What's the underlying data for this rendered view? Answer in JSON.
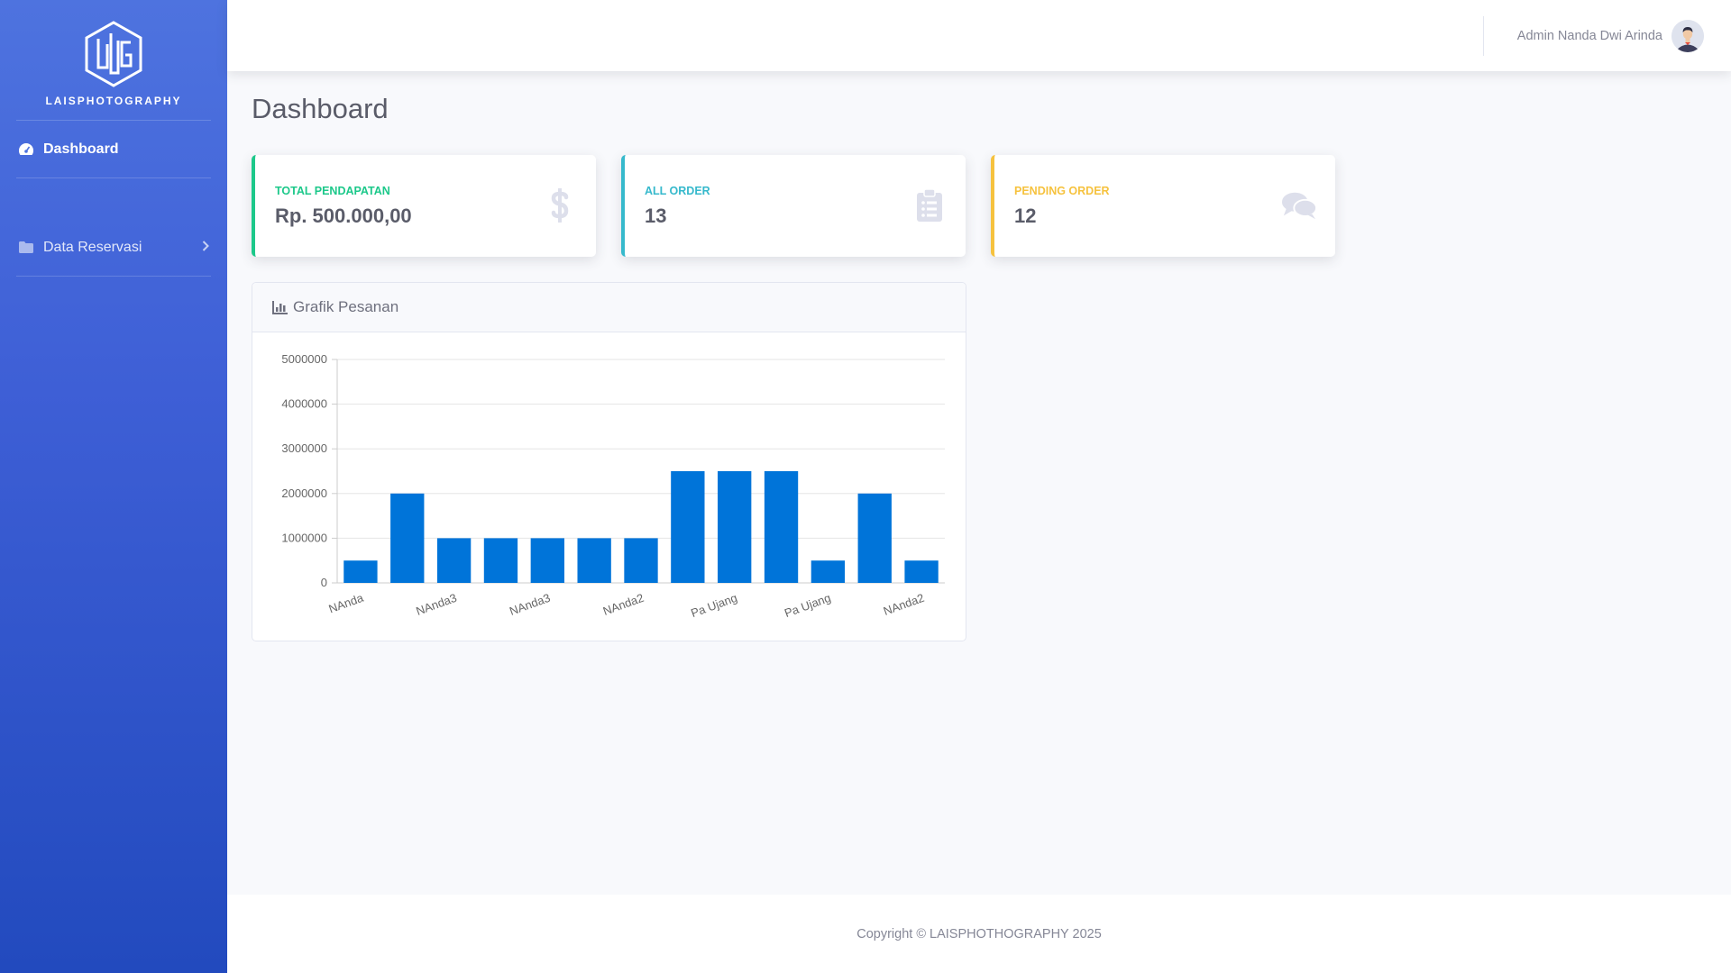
{
  "brand": {
    "name": "LAISPHOTOGRAPHY"
  },
  "sidebar": {
    "items": [
      {
        "label": "Dashboard",
        "icon": "tachometer-icon",
        "active": true
      },
      {
        "label": "Data Reservasi",
        "icon": "folder-icon",
        "active": false
      }
    ]
  },
  "topbar": {
    "user_name": "Admin Nanda Dwi Arinda"
  },
  "page": {
    "title": "Dashboard"
  },
  "cards": [
    {
      "label": "TOTAL PENDAPATAN",
      "value": "Rp. 500.000,00",
      "icon": "dollar-icon",
      "color": "#1cc88a"
    },
    {
      "label": "ALL ORDER",
      "value": "13",
      "icon": "clipboard-list-icon",
      "color": "#36b9cc"
    },
    {
      "label": "PENDING ORDER",
      "value": "12",
      "icon": "comments-icon",
      "color": "#f6c23e"
    }
  ],
  "chart_card": {
    "title": "Grafik Pesanan"
  },
  "chart_data": {
    "type": "bar",
    "categories": [
      "NAnda",
      "",
      "NAnda3",
      "",
      "NAnda3",
      "",
      "NAnda2",
      "",
      "Pa Ujang",
      "",
      "Pa Ujang",
      "",
      "NAnda2"
    ],
    "values": [
      500000,
      2000000,
      1000000,
      1000000,
      1000000,
      1000000,
      1000000,
      2500000,
      2500000,
      2500000,
      500000,
      2000000,
      500000
    ],
    "yticks": [
      "0",
      "1000000",
      "2000000",
      "3000000",
      "4000000",
      "5000000"
    ],
    "ylim": [
      0,
      5000000
    ],
    "bar_color": "#0074d9",
    "grid": true
  },
  "footer": {
    "text": "Copyright © LAISPHOTHOGRAPHY 2025"
  }
}
